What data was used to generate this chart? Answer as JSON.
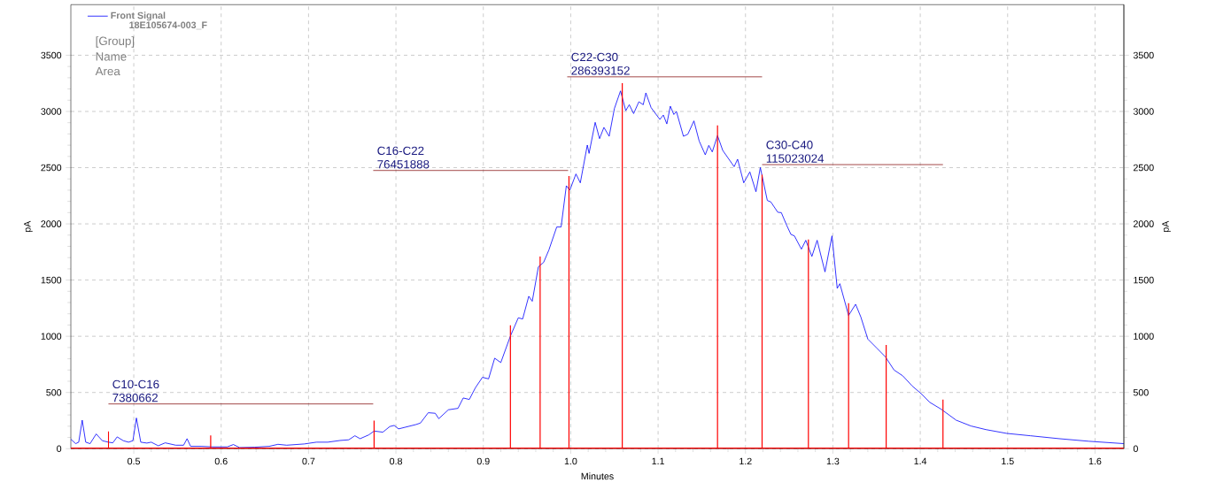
{
  "chart_data": {
    "type": "line",
    "xlabel": "Minutes",
    "ylabel": "pA",
    "y2label": "pA",
    "xlim": [
      0.428,
      1.633
    ],
    "xticks": [
      0.5,
      0.6,
      0.7,
      0.8,
      0.9,
      {
        "value": 1.0,
        "label": "1.0"
      },
      1.1,
      1.2,
      1.3,
      1.4,
      1.5,
      1.6
    ],
    "ylim": [
      0,
      3950
    ],
    "yticks": [
      0,
      500,
      1000,
      1500,
      2000,
      2500,
      3000,
      3500
    ],
    "y2lim": [
      0,
      3950
    ],
    "y2ticks": [
      0,
      500,
      1000,
      1500,
      2000,
      2500,
      3000,
      3500
    ],
    "grid": true,
    "legend": "top left",
    "series": [
      {
        "name": "Front Signal",
        "color": "#0000ff",
        "x": [
          0.428,
          0.4335,
          0.437,
          0.441,
          0.445,
          0.45,
          0.457,
          0.464,
          0.471,
          0.476,
          0.481,
          0.488,
          0.494,
          0.499,
          0.503,
          0.508,
          0.515,
          0.52,
          0.528,
          0.536,
          0.548,
          0.557,
          0.561,
          0.565,
          0.577,
          0.59,
          0.607,
          0.614,
          0.621,
          0.638,
          0.655,
          0.665,
          0.675,
          0.695,
          0.709,
          0.722,
          0.736,
          0.746,
          0.753,
          0.759,
          0.769,
          0.775,
          0.785,
          0.793,
          0.798,
          0.803,
          0.823,
          0.828,
          0.837,
          0.845,
          0.849,
          0.86,
          0.871,
          0.877,
          0.884,
          0.891,
          0.899,
          0.906,
          0.913,
          0.92,
          0.931,
          0.94,
          0.945,
          0.952,
          0.956,
          0.963,
          0.969,
          0.975,
          0.984,
          0.989,
          0.995,
          0.999,
          1.006,
          1.011,
          1.019,
          1.021,
          1.028,
          1.033,
          1.038,
          1.044,
          1.05,
          1.057,
          1.063,
          1.067,
          1.072,
          1.078,
          1.083,
          1.086,
          1.092,
          1.102,
          1.106,
          1.11,
          1.114,
          1.118,
          1.121,
          1.129,
          1.134,
          1.141,
          1.147,
          1.154,
          1.158,
          1.162,
          1.168,
          1.174,
          1.187,
          1.191,
          1.198,
          1.205,
          1.212,
          1.217,
          1.225,
          1.229,
          1.237,
          1.241,
          1.247,
          1.252,
          1.256,
          1.264,
          1.269,
          1.276,
          1.282,
          1.291,
          1.299,
          1.305,
          1.308,
          1.318,
          1.326,
          1.332,
          1.34,
          1.35,
          1.36,
          1.37,
          1.38,
          1.391,
          1.401,
          1.411,
          1.424,
          1.441,
          1.458,
          1.475,
          1.499,
          1.526,
          1.559,
          1.593,
          1.633
        ],
        "values": [
          84,
          45,
          58,
          254,
          58,
          45,
          131,
          71,
          58,
          52,
          105,
          71,
          58,
          71,
          273,
          58,
          50,
          58,
          26,
          52,
          31,
          31,
          89,
          21,
          21,
          16,
          16,
          37,
          10,
          13,
          21,
          39,
          31,
          42,
          58,
          58,
          73,
          79,
          115,
          89,
          123,
          157,
          147,
          197,
          207,
          176,
          215,
          228,
          320,
          315,
          267,
          346,
          359,
          451,
          438,
          543,
          635,
          621,
          805,
          766,
          1002,
          1164,
          1154,
          1356,
          1311,
          1618,
          1657,
          1767,
          1972,
          1972,
          2339,
          2300,
          2444,
          2365,
          2701,
          2627,
          2903,
          2758,
          2858,
          2779,
          3026,
          3183,
          3007,
          3060,
          2981,
          3086,
          3060,
          3165,
          3034,
          2929,
          2968,
          2889,
          3047,
          2973,
          2999,
          2779,
          2797,
          2916,
          2737,
          2614,
          2698,
          2640,
          2785,
          2653,
          2509,
          2575,
          2365,
          2462,
          2286,
          2501,
          2208,
          2195,
          2103,
          2100,
          1990,
          1906,
          1893,
          1775,
          1854,
          1710,
          1854,
          1573,
          1893,
          1426,
          1468,
          1185,
          1285,
          1172,
          975,
          897,
          818,
          700,
          648,
          556,
          490,
          412,
          351,
          254,
          202,
          170,
          136,
          115,
          89,
          66,
          45
        ]
      },
      {
        "type": "bar",
        "color": "#ff0000",
        "x": [
          0.471,
          0.588,
          0.775,
          0.931,
          0.965,
          0.998,
          1.059,
          1.168,
          1.219,
          1.272,
          1.318,
          1.361,
          1.426
        ],
        "values": [
          154,
          118,
          249,
          1098,
          1709,
          2425,
          3251,
          2876,
          2438,
          1861,
          1295,
          923,
          437
        ]
      },
      {
        "type": "line",
        "color": "#8b1a1a",
        "x": [
          0.471,
          0.774
        ],
        "values": [
          398,
          398
        ]
      },
      {
        "type": "line",
        "color": "#8b1a1a",
        "x": [
          0.774,
          0.997
        ],
        "values": [
          2475,
          2475
        ]
      },
      {
        "type": "line",
        "color": "#8b1a1a",
        "x": [
          0.996,
          1.219
        ],
        "values": [
          3308,
          3308
        ]
      },
      {
        "type": "line",
        "color": "#8b1a1a",
        "x": [
          1.219,
          1.426
        ],
        "values": [
          2527,
          2527
        ]
      }
    ],
    "ref_lines": [
      {
        "axis": "y",
        "value": 0,
        "color": "#ff0000"
      }
    ],
    "annotations": [
      "18E105674-003_F",
      "[Group]",
      "Name",
      "Area",
      {
        "text": "C10-C16",
        "x": 0.471,
        "y": 398
      },
      {
        "text": "7380662",
        "x": 0.471,
        "y": 398
      },
      {
        "text": "C16-C22",
        "x": 0.774,
        "y": 2475
      },
      {
        "text": "76451888",
        "x": 0.774,
        "y": 2475
      },
      {
        "text": "C22-C30",
        "x": 0.996,
        "y": 3308
      },
      {
        "text": "286393152",
        "x": 0.996,
        "y": 3308
      },
      {
        "text": "C30-C40",
        "x": 1.219,
        "y": 2527
      },
      {
        "text": "115023024",
        "x": 1.219,
        "y": 2527
      }
    ]
  }
}
